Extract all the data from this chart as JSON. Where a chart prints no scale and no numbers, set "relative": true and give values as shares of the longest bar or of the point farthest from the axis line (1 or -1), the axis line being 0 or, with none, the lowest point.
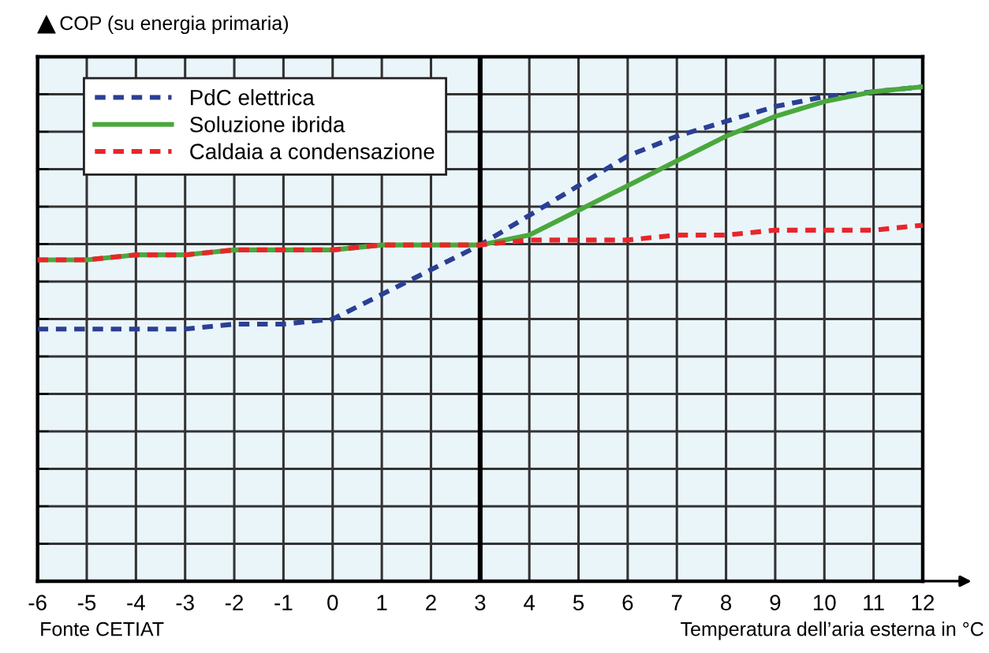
{
  "chart_data": {
    "type": "line",
    "relative": true,
    "ylabel": "COP (su energia primaria)",
    "xlabel": "Temperatura dell’aria esterna in °C",
    "annotations": [
      "Fonte CETIAT"
    ],
    "x": [
      -6,
      -5,
      -4,
      -3,
      -2,
      -1,
      0,
      1,
      2,
      3,
      4,
      5,
      6,
      7,
      8,
      9,
      10,
      11,
      12
    ],
    "xlim": [
      -6,
      12
    ],
    "xticks": [
      -6,
      -5,
      -4,
      -3,
      -2,
      -1,
      0,
      1,
      2,
      3,
      4,
      5,
      6,
      7,
      8,
      9,
      10,
      11,
      12
    ],
    "series": [
      {
        "name": "PdC elettrica",
        "color": "#2b3f94",
        "line_style": "dashed",
        "values": [
          0.51,
          0.51,
          0.51,
          0.51,
          0.52,
          0.52,
          0.53,
          0.58,
          0.63,
          0.68,
          0.74,
          0.8,
          0.86,
          0.9,
          0.93,
          0.96,
          0.98,
          0.99,
          1.0
        ]
      },
      {
        "name": "Soluzione ibrida",
        "color": "#4aa83c",
        "line_style": "solid",
        "values": [
          0.65,
          0.65,
          0.66,
          0.66,
          0.67,
          0.67,
          0.67,
          0.68,
          0.68,
          0.68,
          0.7,
          0.75,
          0.8,
          0.85,
          0.9,
          0.94,
          0.97,
          0.99,
          1.0
        ]
      },
      {
        "name": "Caldaia a condensazione",
        "color": "#e8262a",
        "line_style": "dashed",
        "values": [
          0.65,
          0.65,
          0.66,
          0.66,
          0.67,
          0.67,
          0.67,
          0.68,
          0.68,
          0.68,
          0.69,
          0.69,
          0.69,
          0.7,
          0.7,
          0.71,
          0.71,
          0.71,
          0.72
        ]
      }
    ],
    "ref_lines": [
      {
        "axis": "x",
        "value": 3,
        "color": "#000000"
      }
    ],
    "grid": true,
    "legend": "top left"
  }
}
